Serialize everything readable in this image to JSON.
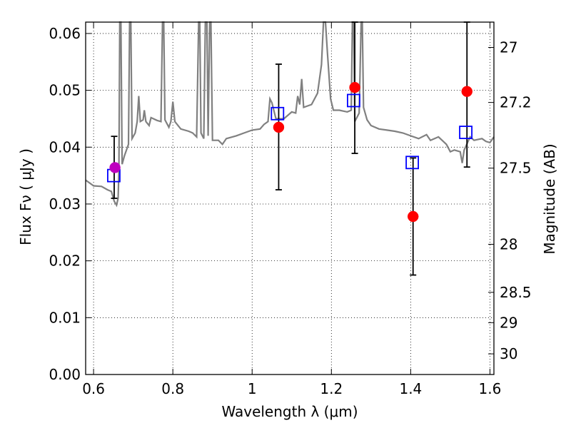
{
  "chart_data": {
    "type": "scatter",
    "xlabel": "Wavelength  λ (μm)",
    "ylabel": "Flux  Fν  ( μJy )",
    "ylabel_right": "Magnitude (AB)",
    "xlim": [
      0.58,
      1.61
    ],
    "ylim": [
      0.0,
      0.062
    ],
    "grid": true,
    "x_ticks": [
      0.6,
      0.8,
      1.0,
      1.2,
      1.4,
      1.6
    ],
    "x_tick_labels": [
      "0.6",
      "0.8",
      "1",
      "1.2",
      "1.4",
      "1.6"
    ],
    "y_ticks": [
      0.0,
      0.01,
      0.02,
      0.03,
      0.04,
      0.05,
      0.06
    ],
    "y_tick_labels": [
      "0.00",
      "0.01",
      "0.02",
      "0.03",
      "0.04",
      "0.05",
      "0.06"
    ],
    "magnitude_ticks": [
      {
        "mag": 27,
        "label": "27"
      },
      {
        "mag": 27.2,
        "label": "27.2"
      },
      {
        "mag": 27.5,
        "label": "27.5"
      },
      {
        "mag": 28,
        "label": "28"
      },
      {
        "mag": 28.5,
        "label": "28.5"
      },
      {
        "mag": 29,
        "label": "29"
      },
      {
        "mag": 30,
        "label": "30"
      }
    ],
    "series": [
      {
        "type": "line",
        "color": "#808080",
        "points": [
          [
            0.58,
            0.0342
          ],
          [
            0.6,
            0.0332
          ],
          [
            0.62,
            0.0331
          ],
          [
            0.635,
            0.0325
          ],
          [
            0.645,
            0.0322
          ],
          [
            0.652,
            0.0305
          ],
          [
            0.658,
            0.0298
          ],
          [
            0.662,
            0.031
          ],
          [
            0.664,
            0.036
          ],
          [
            0.666,
            0.062
          ],
          [
            0.669,
            0.062
          ],
          [
            0.672,
            0.037
          ],
          [
            0.678,
            0.0385
          ],
          [
            0.683,
            0.0395
          ],
          [
            0.688,
            0.0405
          ],
          [
            0.691,
            0.062
          ],
          [
            0.694,
            0.062
          ],
          [
            0.697,
            0.0415
          ],
          [
            0.705,
            0.0425
          ],
          [
            0.71,
            0.0445
          ],
          [
            0.714,
            0.049
          ],
          [
            0.718,
            0.0445
          ],
          [
            0.725,
            0.0448
          ],
          [
            0.728,
            0.0465
          ],
          [
            0.732,
            0.0445
          ],
          [
            0.74,
            0.0438
          ],
          [
            0.745,
            0.0452
          ],
          [
            0.76,
            0.0447
          ],
          [
            0.77,
            0.0445
          ],
          [
            0.774,
            0.062
          ],
          [
            0.777,
            0.062
          ],
          [
            0.78,
            0.0448
          ],
          [
            0.79,
            0.0435
          ],
          [
            0.795,
            0.0445
          ],
          [
            0.8,
            0.048
          ],
          [
            0.805,
            0.0445
          ],
          [
            0.82,
            0.0432
          ],
          [
            0.84,
            0.0428
          ],
          [
            0.85,
            0.0425
          ],
          [
            0.86,
            0.0418
          ],
          [
            0.865,
            0.062
          ],
          [
            0.868,
            0.062
          ],
          [
            0.871,
            0.0425
          ],
          [
            0.878,
            0.0415
          ],
          [
            0.882,
            0.062
          ],
          [
            0.886,
            0.062
          ],
          [
            0.889,
            0.042
          ],
          [
            0.893,
            0.062
          ],
          [
            0.896,
            0.062
          ],
          [
            0.9,
            0.0412
          ],
          [
            0.915,
            0.0412
          ],
          [
            0.925,
            0.0405
          ],
          [
            0.935,
            0.0415
          ],
          [
            0.96,
            0.042
          ],
          [
            0.98,
            0.0425
          ],
          [
            1.0,
            0.043
          ],
          [
            1.02,
            0.0432
          ],
          [
            1.03,
            0.044
          ],
          [
            1.04,
            0.0445
          ],
          [
            1.045,
            0.0485
          ],
          [
            1.05,
            0.0478
          ],
          [
            1.06,
            0.045
          ],
          [
            1.08,
            0.045
          ],
          [
            1.1,
            0.0462
          ],
          [
            1.11,
            0.046
          ],
          [
            1.115,
            0.049
          ],
          [
            1.12,
            0.0475
          ],
          [
            1.125,
            0.052
          ],
          [
            1.13,
            0.047
          ],
          [
            1.15,
            0.0475
          ],
          [
            1.165,
            0.0495
          ],
          [
            1.175,
            0.0545
          ],
          [
            1.18,
            0.062
          ],
          [
            1.185,
            0.062
          ],
          [
            1.19,
            0.0565
          ],
          [
            1.198,
            0.0485
          ],
          [
            1.205,
            0.0465
          ],
          [
            1.22,
            0.0465
          ],
          [
            1.24,
            0.0462
          ],
          [
            1.25,
            0.0465
          ],
          [
            1.253,
            0.062
          ],
          [
            1.256,
            0.062
          ],
          [
            1.259,
            0.0445
          ],
          [
            1.27,
            0.046
          ],
          [
            1.275,
            0.062
          ],
          [
            1.278,
            0.062
          ],
          [
            1.281,
            0.047
          ],
          [
            1.29,
            0.0448
          ],
          [
            1.3,
            0.0438
          ],
          [
            1.32,
            0.0432
          ],
          [
            1.34,
            0.043
          ],
          [
            1.36,
            0.0428
          ],
          [
            1.38,
            0.0425
          ],
          [
            1.4,
            0.042
          ],
          [
            1.42,
            0.0415
          ],
          [
            1.44,
            0.0422
          ],
          [
            1.45,
            0.0412
          ],
          [
            1.47,
            0.0418
          ],
          [
            1.49,
            0.0405
          ],
          [
            1.5,
            0.0392
          ],
          [
            1.51,
            0.0395
          ],
          [
            1.525,
            0.0392
          ],
          [
            1.53,
            0.0372
          ],
          [
            1.535,
            0.0395
          ],
          [
            1.55,
            0.0418
          ],
          [
            1.56,
            0.0412
          ],
          [
            1.58,
            0.0415
          ],
          [
            1.59,
            0.041
          ],
          [
            1.6,
            0.0408
          ],
          [
            1.61,
            0.0418
          ]
        ]
      },
      {
        "type": "errorbar",
        "color": "#000000",
        "points": [
          {
            "x": 0.652,
            "low": 0.031,
            "high": 0.0419
          },
          {
            "x": 1.067,
            "low": 0.0325,
            "high": 0.0546
          },
          {
            "x": 1.259,
            "low": 0.0389,
            "high": 0.062
          },
          {
            "x": 1.406,
            "low": 0.0175,
            "high": 0.0381
          },
          {
            "x": 1.542,
            "low": 0.0365,
            "high": 0.062
          }
        ]
      },
      {
        "type": "scatter-square",
        "color": "#0000ff",
        "points": [
          [
            0.651,
            0.035
          ],
          [
            1.064,
            0.0459
          ],
          [
            1.256,
            0.0482
          ],
          [
            1.404,
            0.0373
          ],
          [
            1.539,
            0.0426
          ]
        ]
      },
      {
        "type": "scatter-circle",
        "color": "#ff0000",
        "points": [
          [
            1.067,
            0.0435
          ],
          [
            1.259,
            0.0505
          ],
          [
            1.406,
            0.0278
          ],
          [
            1.542,
            0.0498
          ]
        ]
      },
      {
        "type": "scatter-circle",
        "color": "#bf00bf",
        "points": [
          [
            0.654,
            0.0364
          ]
        ]
      }
    ]
  }
}
